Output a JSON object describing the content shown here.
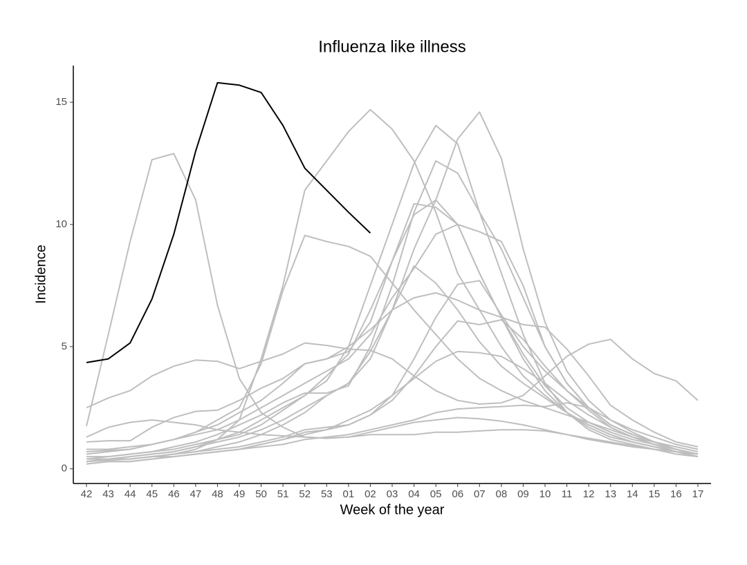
{
  "chart_data": {
    "type": "line",
    "title": "Influenza like illness",
    "x_label": "Week of the year",
    "y_label": "Incidence",
    "categories": [
      "42",
      "43",
      "44",
      "45",
      "46",
      "47",
      "48",
      "49",
      "50",
      "51",
      "52",
      "53",
      "01",
      "02",
      "03",
      "04",
      "05",
      "06",
      "07",
      "08",
      "09",
      "10",
      "11",
      "12",
      "13",
      "14",
      "15",
      "16",
      "17"
    ],
    "ylim": [
      -0.6,
      16.5
    ],
    "yticks": [
      0,
      5,
      10,
      15
    ],
    "grid": false,
    "series": [
      {
        "color": "#bebebe",
        "values": [
          1.75,
          5.5,
          9.3,
          12.65,
          12.9,
          11,
          6.7,
          3.7,
          2.3,
          1.7,
          1.3,
          1.25,
          1.3,
          1.4,
          1.4,
          1.4,
          1.5,
          1.5,
          1.55,
          1.6,
          1.6,
          1.55,
          1.4,
          1.25,
          1.1,
          0.95,
          0.8,
          0.7,
          0.6
        ]
      },
      {
        "color": "#bebebe",
        "values": [
          0.3,
          0.4,
          0.4,
          0.5,
          0.6,
          0.8,
          1.2,
          2,
          4.5,
          7.5,
          11.4,
          12.6,
          13.8,
          14.7,
          13.9,
          12.6,
          10.5,
          8,
          6.5,
          5,
          3.8,
          3,
          2.3,
          1.8,
          1.4,
          1.1,
          0.9,
          0.7,
          0.5
        ]
      },
      {
        "color": "#bebebe",
        "values": [
          0.8,
          0.8,
          0.9,
          1.0,
          1.2,
          1.5,
          2,
          2.5,
          4.3,
          7.3,
          9.55,
          9.3,
          9.1,
          8.7,
          7.6,
          6.5,
          5.5,
          4.5,
          3.7,
          3.2,
          2.8,
          2.5,
          2.2,
          1.9,
          1.6,
          1.3,
          1.1,
          0.9,
          0.7
        ]
      },
      {
        "color": "#bebebe",
        "values": [
          2.5,
          2.9,
          3.2,
          3.8,
          4.2,
          4.45,
          4.4,
          4.1,
          4.4,
          4.7,
          5.15,
          5.05,
          4.9,
          4.85,
          4.5,
          3.8,
          3.2,
          2.8,
          2.65,
          2.7,
          3.0,
          3.8,
          4.6,
          5.1,
          5.3,
          4.5,
          3.9,
          3.6,
          2.8
        ]
      },
      {
        "color": "#bebebe",
        "values": [
          0.3,
          0.35,
          0.4,
          0.5,
          0.6,
          0.7,
          0.9,
          1.1,
          1.4,
          1.8,
          2.3,
          3,
          3.5,
          4.5,
          6.5,
          9,
          11,
          13.5,
          14.6,
          12.7,
          9,
          6,
          4,
          2.8,
          2,
          1.5,
          1.1,
          0.8,
          0.6
        ]
      },
      {
        "color": "#bebebe",
        "values": [
          0.5,
          0.5,
          0.6,
          0.7,
          0.8,
          1,
          1.2,
          1.4,
          1.8,
          2.4,
          3,
          3.6,
          5,
          7.5,
          10,
          12.5,
          14.05,
          13.3,
          10.5,
          8,
          5.5,
          3.5,
          2.3,
          1.6,
          1.2,
          1,
          0.8,
          0.6,
          0.5
        ]
      },
      {
        "color": "#bebebe",
        "values": [
          0.4,
          0.5,
          0.6,
          0.7,
          0.9,
          1.1,
          1.4,
          1.8,
          2.2,
          2.7,
          3.1,
          3.1,
          3.4,
          5,
          7.5,
          10.5,
          12.6,
          12.1,
          10.5,
          9,
          7,
          5,
          3.5,
          2.5,
          1.8,
          1.4,
          1.1,
          0.8,
          0.6
        ]
      },
      {
        "color": "#bebebe",
        "values": [
          0.6,
          0.7,
          0.8,
          1,
          1.2,
          1.5,
          1.8,
          2.3,
          2.8,
          3.5,
          4.3,
          4.5,
          4.8,
          6,
          8.5,
          10.85,
          10.7,
          10,
          8,
          6.2,
          4.5,
          3.2,
          2.3,
          1.7,
          1.3,
          1.1,
          0.9,
          0.7,
          0.6
        ]
      },
      {
        "color": "#bebebe",
        "values": [
          0.3,
          0.4,
          0.5,
          0.6,
          0.7,
          0.9,
          1.2,
          1.5,
          2,
          2.5,
          3,
          3.8,
          4.7,
          6.5,
          8.5,
          10.4,
          11,
          10,
          8,
          6.2,
          4.7,
          3.4,
          2.5,
          1.9,
          1.5,
          1.2,
          1,
          0.8,
          0.6
        ]
      },
      {
        "color": "#bebebe",
        "values": [
          1.1,
          1.15,
          1.15,
          1.7,
          2.1,
          2.35,
          2.4,
          2.8,
          3.3,
          3.7,
          4.3,
          4.5,
          5,
          5.7,
          6.5,
          7,
          7.2,
          6.9,
          6.5,
          6.2,
          5.9,
          5.8,
          4.9,
          3.8,
          2.6,
          2,
          1.5,
          1.1,
          0.9
        ]
      },
      {
        "color": "#bebebe",
        "values": [
          0.7,
          0.75,
          0.8,
          1,
          1.2,
          1.4,
          1.6,
          2,
          2.5,
          3,
          3.5,
          4,
          4.5,
          5.5,
          7,
          8.2,
          9.6,
          10,
          9.7,
          9.3,
          7.5,
          5,
          3.5,
          2.5,
          1.8,
          1.4,
          1.1,
          0.8,
          0.6
        ]
      },
      {
        "color": "#bebebe",
        "values": [
          0.2,
          0.3,
          0.3,
          0.4,
          0.5,
          0.6,
          0.7,
          0.8,
          1,
          1.2,
          1.5,
          1.6,
          1.8,
          2.2,
          3,
          4.5,
          6.2,
          7.55,
          7.7,
          6.3,
          5,
          4,
          3.2,
          2.5,
          1.8,
          1.4,
          1.1,
          0.8,
          0.6
        ]
      },
      {
        "color": "#bebebe",
        "values": [
          0.4,
          0.4,
          0.5,
          0.6,
          0.7,
          0.9,
          1.1,
          1.3,
          1.6,
          2,
          2.5,
          3,
          3.5,
          4.8,
          6.5,
          8.3,
          7.6,
          6.5,
          5.2,
          4.2,
          3.5,
          2.9,
          2.3,
          1.8,
          1.4,
          1.1,
          0.9,
          0.7,
          0.5
        ]
      },
      {
        "color": "#bebebe",
        "values": [
          0.3,
          0.4,
          0.4,
          0.5,
          0.6,
          0.7,
          0.8,
          0.9,
          1.1,
          1.3,
          1.6,
          1.7,
          1.8,
          2.2,
          2.8,
          3.8,
          5,
          6.05,
          5.9,
          6.1,
          5.3,
          4.2,
          3.2,
          2.4,
          1.7,
          1.3,
          1,
          0.7,
          0.5
        ]
      },
      {
        "color": "#bebebe",
        "values": [
          0.2,
          0.3,
          0.3,
          0.4,
          0.5,
          0.6,
          0.7,
          0.8,
          1,
          1.2,
          1.4,
          1.6,
          2,
          2.4,
          3,
          3.7,
          4.4,
          4.8,
          4.75,
          4.6,
          4.1,
          3.5,
          2.8,
          2.2,
          1.7,
          1.3,
          1,
          0.8,
          0.6
        ]
      },
      {
        "color": "#bebebe",
        "values": [
          0.3,
          0.4,
          0.4,
          0.5,
          0.5,
          0.6,
          0.7,
          0.8,
          0.9,
          1,
          1.2,
          1.3,
          1.4,
          1.6,
          1.8,
          2,
          2.3,
          2.45,
          2.5,
          2.55,
          2.6,
          2.55,
          2.7,
          2.5,
          2.0,
          1.6,
          1.3,
          1,
          0.8
        ]
      },
      {
        "color": "#bebebe",
        "values": [
          1.3,
          1.7,
          1.9,
          2.0,
          1.9,
          1.8,
          1.6,
          1.5,
          1.4,
          1.35,
          1.3,
          1.25,
          1.3,
          1.5,
          1.7,
          1.9,
          2,
          2.1,
          2.05,
          1.95,
          1.8,
          1.6,
          1.4,
          1.2,
          1.05,
          0.9,
          0.8,
          0.7,
          0.6
        ]
      },
      {
        "color": "#000000",
        "values": [
          4.35,
          4.5,
          5.15,
          6.95,
          9.6,
          13,
          15.8,
          15.7,
          15.4,
          14.05,
          12.3,
          11.4,
          10.5,
          9.65,
          null,
          null,
          null,
          null,
          null,
          null,
          null,
          null,
          null,
          null,
          null,
          null,
          null,
          null,
          null
        ]
      }
    ]
  }
}
